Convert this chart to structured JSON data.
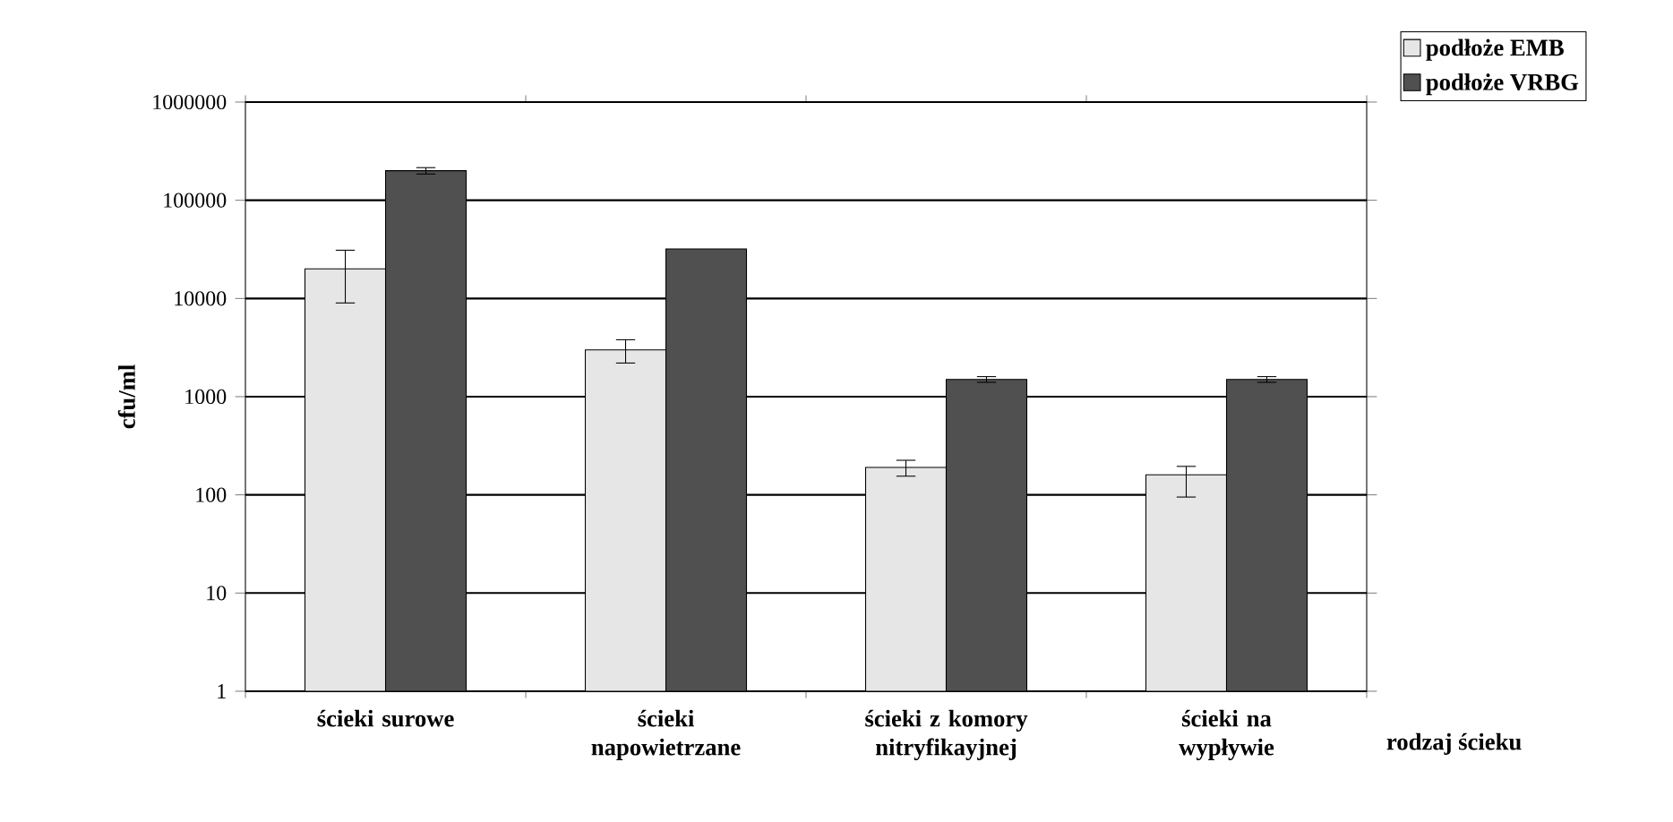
{
  "chart_data": {
    "type": "bar",
    "ylabel": "cfu/ml",
    "xlabel": "rodzaj ścieku",
    "categories": [
      "ścieki surowe",
      "ścieki napowietrzane",
      "ścieki z komory nitryfikayjnej",
      "ścieki na wypływie"
    ],
    "series": [
      {
        "name": "podłoże EMB",
        "color": "#e6e6e6",
        "values": [
          20000,
          3000,
          190,
          160
        ],
        "errors": [
          11000,
          800,
          35,
          [
            95,
            195
          ]
        ]
      },
      {
        "name": "podłoże VRBG",
        "color": "#505050",
        "values": [
          200000,
          32000,
          1500,
          1500
        ],
        "errors": [
          15000,
          null,
          100,
          100
        ]
      }
    ],
    "log": true,
    "ylim": [
      1,
      1000000
    ],
    "yticks": [
      1,
      10,
      100,
      1000,
      10000,
      100000,
      1000000
    ],
    "grid": "y",
    "legend": "top right"
  }
}
